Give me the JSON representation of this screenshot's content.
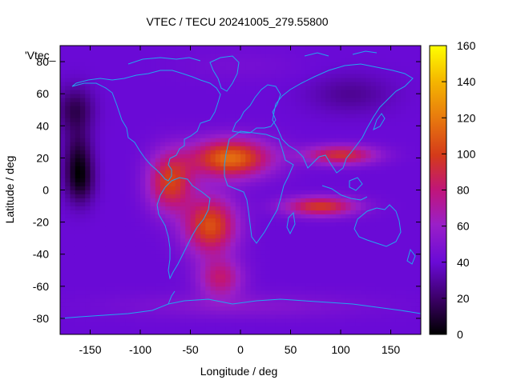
{
  "chart_data": {
    "type": "heatmap",
    "title": "VTEC / TECU 20241005_279.55800",
    "xlabel": "Longitude / deg",
    "ylabel": "Latitude / deg",
    "key_label": "'Vtec_",
    "xlim": [
      -180,
      180
    ],
    "ylim": [
      -90,
      90
    ],
    "x_ticks": [
      "-150",
      "-100",
      "-50",
      "0",
      "50",
      "100",
      "150"
    ],
    "x_tick_values": [
      -150,
      -100,
      -50,
      0,
      50,
      100,
      150
    ],
    "y_ticks": [
      "-80",
      "-60",
      "-40",
      "-20",
      "0",
      "20",
      "40",
      "60",
      "80"
    ],
    "y_tick_values": [
      -80,
      -60,
      -40,
      -20,
      0,
      20,
      40,
      60,
      80
    ],
    "colorbar": {
      "range": [
        0,
        160
      ],
      "ticks": [
        "0",
        "20",
        "40",
        "60",
        "80",
        "100",
        "120",
        "140",
        "160"
      ],
      "tick_values": [
        0,
        20,
        40,
        60,
        80,
        100,
        120,
        140,
        160
      ],
      "palette": "black-purple-red-orange-yellow"
    },
    "features": [
      {
        "name": "background",
        "lon": 0,
        "lat": 0,
        "value": 40
      },
      {
        "name": "polar-cap-north",
        "lon": 0,
        "lat": 78,
        "value": 45
      },
      {
        "name": "pacific-low-a",
        "lon": -162,
        "lat": 20,
        "value": 14
      },
      {
        "name": "pacific-low-b",
        "lon": -160,
        "lat": 5,
        "value": 16
      },
      {
        "name": "pacific-low-c",
        "lon": -165,
        "lat": 50,
        "value": 16
      },
      {
        "name": "asia-low",
        "lon": 110,
        "lat": 60,
        "value": 28
      },
      {
        "name": "africa-atlantic-crest",
        "lon": -10,
        "lat": 20,
        "value": 116
      },
      {
        "name": "south-atlantic-crest",
        "lon": -30,
        "lat": -22,
        "value": 106
      },
      {
        "name": "south-america-crest",
        "lon": -70,
        "lat": 5,
        "value": 100
      },
      {
        "name": "indian-ocean-north-band",
        "lon": 100,
        "lat": 22,
        "value": 94
      },
      {
        "name": "indian-ocean-south-band",
        "lon": 80,
        "lat": -10,
        "value": 98
      },
      {
        "name": "south-atlantic-tail",
        "lon": -20,
        "lat": -55,
        "value": 80
      },
      {
        "name": "antarctic-band",
        "lon": 0,
        "lat": -72,
        "value": 52
      }
    ]
  }
}
